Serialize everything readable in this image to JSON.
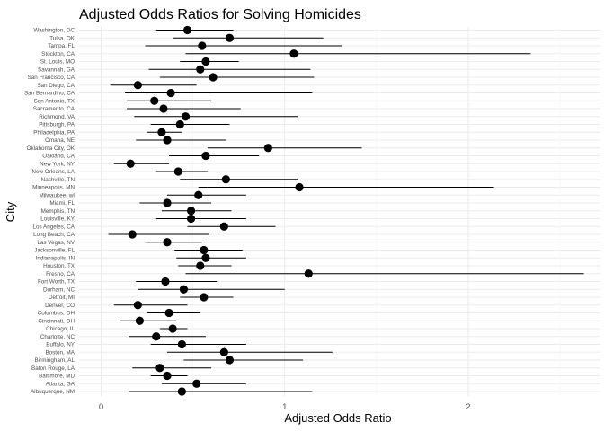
{
  "chart_data": {
    "type": "scatter",
    "title": "Adjusted Odds Ratios for Solving Homicides",
    "xlabel": "Adjusted Odds Ratio",
    "ylabel": "City",
    "xlim": [
      -0.12,
      2.72
    ],
    "x_ticks": [
      0,
      1,
      2
    ],
    "grid": true,
    "legend": "none",
    "series": [
      {
        "values": [
          {
            "city": "Washington, DC",
            "estimate": 0.47,
            "ci_low": 0.3,
            "ci_high": 0.72
          },
          {
            "city": "Tulsa, OK",
            "estimate": 0.7,
            "ci_low": 0.39,
            "ci_high": 1.21
          },
          {
            "city": "Tampa, FL",
            "estimate": 0.55,
            "ci_low": 0.24,
            "ci_high": 1.31
          },
          {
            "city": "Stockton, CA",
            "estimate": 1.05,
            "ci_low": 0.46,
            "ci_high": 2.34
          },
          {
            "city": "St. Louis, MO",
            "estimate": 0.57,
            "ci_low": 0.43,
            "ci_high": 0.75
          },
          {
            "city": "Savannah, GA",
            "estimate": 0.54,
            "ci_low": 0.26,
            "ci_high": 1.14
          },
          {
            "city": "San Francisco, CA",
            "estimate": 0.61,
            "ci_low": 0.32,
            "ci_high": 1.16
          },
          {
            "city": "San Diego, CA",
            "estimate": 0.2,
            "ci_low": 0.05,
            "ci_high": 0.52
          },
          {
            "city": "San Bernardino, CA",
            "estimate": 0.38,
            "ci_low": 0.13,
            "ci_high": 1.15
          },
          {
            "city": "San Antonio, TX",
            "estimate": 0.29,
            "ci_low": 0.14,
            "ci_high": 0.6
          },
          {
            "city": "Sacramento, CA",
            "estimate": 0.34,
            "ci_low": 0.14,
            "ci_high": 0.76
          },
          {
            "city": "Richmond, VA",
            "estimate": 0.46,
            "ci_low": 0.18,
            "ci_high": 1.07
          },
          {
            "city": "Pittsburgh, PA",
            "estimate": 0.43,
            "ci_low": 0.27,
            "ci_high": 0.7
          },
          {
            "city": "Philadelphia, PA",
            "estimate": 0.33,
            "ci_low": 0.25,
            "ci_high": 0.44
          },
          {
            "city": "Omaha, NE",
            "estimate": 0.36,
            "ci_low": 0.19,
            "ci_high": 0.68
          },
          {
            "city": "Oklahoma City, OK",
            "estimate": 0.91,
            "ci_low": 0.58,
            "ci_high": 1.42
          },
          {
            "city": "Oakland, CA",
            "estimate": 0.57,
            "ci_low": 0.37,
            "ci_high": 0.86
          },
          {
            "city": "New York, NY",
            "estimate": 0.16,
            "ci_low": 0.07,
            "ci_high": 0.37
          },
          {
            "city": "New Orleans, LA",
            "estimate": 0.42,
            "ci_low": 0.3,
            "ci_high": 0.58
          },
          {
            "city": "Nashville, TN",
            "estimate": 0.68,
            "ci_low": 0.43,
            "ci_high": 1.07
          },
          {
            "city": "Minneapolis, MN",
            "estimate": 1.08,
            "ci_low": 0.53,
            "ci_high": 2.14
          },
          {
            "city": "Milwaukee, wI",
            "estimate": 0.53,
            "ci_low": 0.36,
            "ci_high": 0.79
          },
          {
            "city": "Miami, FL",
            "estimate": 0.36,
            "ci_low": 0.21,
            "ci_high": 0.6
          },
          {
            "city": "Memphis, TN",
            "estimate": 0.49,
            "ci_low": 0.33,
            "ci_high": 0.71
          },
          {
            "city": "Louisville, KY",
            "estimate": 0.49,
            "ci_low": 0.3,
            "ci_high": 0.79
          },
          {
            "city": "Los Angeles, CA",
            "estimate": 0.67,
            "ci_low": 0.47,
            "ci_high": 0.95
          },
          {
            "city": "Long Beach, CA",
            "estimate": 0.17,
            "ci_low": 0.04,
            "ci_high": 0.59
          },
          {
            "city": "Las Vegas, NV",
            "estimate": 0.36,
            "ci_low": 0.24,
            "ci_high": 0.55
          },
          {
            "city": "Jacksonville, FL",
            "estimate": 0.56,
            "ci_low": 0.4,
            "ci_high": 0.77
          },
          {
            "city": "Indianapolis, IN",
            "estimate": 0.57,
            "ci_low": 0.41,
            "ci_high": 0.79
          },
          {
            "city": "Houston, TX",
            "estimate": 0.54,
            "ci_low": 0.42,
            "ci_high": 0.71
          },
          {
            "city": "Fresno, CA",
            "estimate": 1.13,
            "ci_low": 0.46,
            "ci_high": 2.63
          },
          {
            "city": "Fort Worth, TX",
            "estimate": 0.35,
            "ci_low": 0.19,
            "ci_high": 0.63
          },
          {
            "city": "Durham, NC",
            "estimate": 0.45,
            "ci_low": 0.2,
            "ci_high": 1.0
          },
          {
            "city": "Detroit, MI",
            "estimate": 0.56,
            "ci_low": 0.43,
            "ci_high": 0.72
          },
          {
            "city": "Denver, CO",
            "estimate": 0.2,
            "ci_low": 0.07,
            "ci_high": 0.47
          },
          {
            "city": "Columbus, OH",
            "estimate": 0.37,
            "ci_low": 0.25,
            "ci_high": 0.54
          },
          {
            "city": "Cincinnati, OH",
            "estimate": 0.21,
            "ci_low": 0.1,
            "ci_high": 0.41
          },
          {
            "city": "Chicago, IL",
            "estimate": 0.39,
            "ci_low": 0.32,
            "ci_high": 0.47
          },
          {
            "city": "Charlotte, NC",
            "estimate": 0.3,
            "ci_low": 0.15,
            "ci_high": 0.57
          },
          {
            "city": "Buffalo, NY",
            "estimate": 0.44,
            "ci_low": 0.27,
            "ci_high": 0.79
          },
          {
            "city": "Boston, MA",
            "estimate": 0.67,
            "ci_low": 0.36,
            "ci_high": 1.26
          },
          {
            "city": "Birmingham, AL",
            "estimate": 0.7,
            "ci_low": 0.45,
            "ci_high": 1.1
          },
          {
            "city": "Baton Rouge, LA",
            "estimate": 0.32,
            "ci_low": 0.17,
            "ci_high": 0.6
          },
          {
            "city": "Baltimore, MD",
            "estimate": 0.36,
            "ci_low": 0.27,
            "ci_high": 0.47
          },
          {
            "city": "Atlanta, GA",
            "estimate": 0.52,
            "ci_low": 0.33,
            "ci_high": 0.79
          },
          {
            "city": "Albuquerque, NM",
            "estimate": 0.44,
            "ci_low": 0.15,
            "ci_high": 1.15
          }
        ]
      }
    ]
  }
}
